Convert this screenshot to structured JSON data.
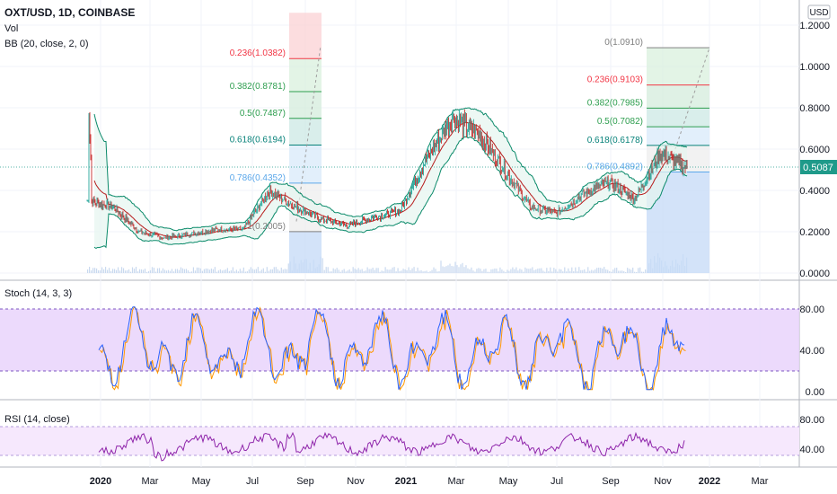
{
  "header": {
    "symbol": "OXT/USD, 1D, COINBASE",
    "vol_label": "Vol",
    "bb_label": "BB (20, close, 2, 0)",
    "currency": "USD"
  },
  "colors": {
    "price": "#6d2b2b",
    "bb_band": "#0b8a6a",
    "bb_fill": "#e6f5ef",
    "last_price_bg": "#1f9a8a",
    "stoch_fill": "#e9d4fb",
    "stoch_k": "#2962ff",
    "stoch_d": "#ff9800",
    "rsi_fill": "#f6e8fd",
    "rsi_line": "#8e24aa",
    "fib_red": "#f23645",
    "fib_green": "#2e9e4f",
    "fib_teal": "#08827a",
    "fib_blue": "#5ba7ea",
    "fib_gray": "#808080"
  },
  "price_axis": {
    "ticks": [
      "1.2000",
      "1.0000",
      "0.8000",
      "0.6000",
      "0.4000",
      "0.2000",
      "0.0000"
    ],
    "last_price": "0.5087"
  },
  "stoch_panel": {
    "label": "Stoch (14, 3, 3)",
    "ticks": [
      "80.00",
      "40.00",
      "0.00"
    ]
  },
  "rsi_panel": {
    "label": "RSI (14, close)",
    "ticks": [
      "80.00",
      "40.00"
    ]
  },
  "time_axis": {
    "labels": [
      "2020",
      "Mar",
      "May",
      "Jul",
      "Sep",
      "Nov",
      "2021",
      "Mar",
      "May",
      "Jul",
      "Sep",
      "Nov",
      "2022",
      "Mar"
    ]
  },
  "fib_left": {
    "levels": [
      {
        "label": "0.236(1.0382)",
        "value": 1.0382,
        "color": "#f23645"
      },
      {
        "label": "0.382(0.8781)",
        "value": 0.8781,
        "color": "#2e9e4f"
      },
      {
        "label": "0.5(0.7487)",
        "value": 0.7487,
        "color": "#2e9e4f"
      },
      {
        "label": "0.618(0.6194)",
        "value": 0.6194,
        "color": "#08827a"
      },
      {
        "label": "0.786(0.4352)",
        "value": 0.4352,
        "color": "#5ba7ea"
      },
      {
        "label": "1(0.2005)",
        "value": 0.2005,
        "color": "#808080"
      }
    ]
  },
  "fib_right": {
    "levels": [
      {
        "label": "0(1.0910)",
        "value": 1.091,
        "color": "#808080"
      },
      {
        "label": "0.236(0.9103)",
        "value": 0.9103,
        "color": "#f23645"
      },
      {
        "label": "0.382(0.7985)",
        "value": 0.7985,
        "color": "#2e9e4f"
      },
      {
        "label": "0.5(0.7082)",
        "value": 0.7082,
        "color": "#2e9e4f"
      },
      {
        "label": "0.618(0.6178)",
        "value": 0.6178,
        "color": "#08827a"
      },
      {
        "label": "0.786(0.4892)",
        "value": 0.4892,
        "color": "#5ba7ea"
      }
    ]
  },
  "chart_data": {
    "type": "line",
    "title": "OXT/USD, 1D, COINBASE",
    "ylabel": "USD",
    "ylim": [
      0,
      1.2
    ],
    "x": [
      "2020-01",
      "2020-02",
      "2020-03",
      "2020-04",
      "2020-05",
      "2020-06",
      "2020-07",
      "2020-08",
      "2020-09",
      "2020-10",
      "2020-11",
      "2020-12",
      "2021-01",
      "2021-02",
      "2021-03",
      "2021-04",
      "2021-05",
      "2021-06",
      "2021-07",
      "2021-08",
      "2021-09",
      "2021-10",
      "2021-11",
      "2021-12"
    ],
    "series": [
      {
        "values": [
          0.35,
          0.32,
          0.2,
          0.17,
          0.19,
          0.21,
          0.21,
          0.4,
          0.32,
          0.26,
          0.23,
          0.27,
          0.3,
          0.55,
          0.75,
          0.68,
          0.5,
          0.32,
          0.29,
          0.38,
          0.44,
          0.36,
          0.58,
          0.51
        ]
      }
    ]
  }
}
